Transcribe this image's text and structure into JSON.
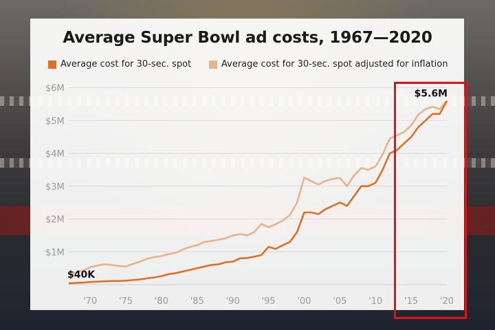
{
  "chart_data": {
    "type": "line",
    "title": "Average Super Bowl ad costs, 1967—2020",
    "xlabel": "",
    "ylabel": "",
    "x": [
      1967,
      1968,
      1969,
      1970,
      1971,
      1972,
      1973,
      1974,
      1975,
      1976,
      1977,
      1978,
      1979,
      1980,
      1981,
      1982,
      1983,
      1984,
      1985,
      1986,
      1987,
      1988,
      1989,
      1990,
      1991,
      1992,
      1993,
      1994,
      1995,
      1996,
      1997,
      1998,
      1999,
      2000,
      2001,
      2002,
      2003,
      2004,
      2005,
      2006,
      2007,
      2008,
      2009,
      2010,
      2011,
      2012,
      2013,
      2014,
      2015,
      2016,
      2017,
      2018,
      2019,
      2020
    ],
    "series": [
      {
        "name": "Average cost for 30-sec. spot",
        "color": "#e07020",
        "values": [
          0.04,
          0.05,
          0.06,
          0.08,
          0.09,
          0.1,
          0.11,
          0.11,
          0.12,
          0.14,
          0.16,
          0.19,
          0.22,
          0.26,
          0.32,
          0.35,
          0.4,
          0.45,
          0.5,
          0.55,
          0.6,
          0.62,
          0.68,
          0.7,
          0.8,
          0.81,
          0.85,
          0.9,
          1.15,
          1.09,
          1.2,
          1.3,
          1.6,
          2.2,
          2.2,
          2.15,
          2.3,
          2.4,
          2.5,
          2.4,
          2.7,
          3.0,
          3.0,
          3.1,
          3.5,
          4.0,
          4.1,
          4.3,
          4.5,
          4.8,
          5.0,
          5.2,
          5.2,
          5.6
        ]
      },
      {
        "name": "Average cost for 30-sec. spot adjusted for inflation",
        "color": "#e8b38a",
        "values": [
          0.31,
          0.37,
          0.43,
          0.53,
          0.58,
          0.62,
          0.6,
          0.57,
          0.55,
          0.63,
          0.7,
          0.79,
          0.84,
          0.87,
          0.93,
          0.97,
          1.07,
          1.15,
          1.2,
          1.3,
          1.33,
          1.37,
          1.41,
          1.5,
          1.54,
          1.5,
          1.6,
          1.85,
          1.75,
          1.84,
          1.95,
          2.12,
          2.5,
          3.26,
          3.15,
          3.05,
          3.16,
          3.22,
          3.25,
          3.0,
          3.33,
          3.55,
          3.5,
          3.6,
          3.97,
          4.45,
          4.55,
          4.65,
          4.85,
          5.18,
          5.35,
          5.42,
          5.35,
          5.6
        ]
      }
    ],
    "ylim": [
      0,
      6.2
    ],
    "yticks": [
      {
        "value": 1,
        "label": "$1M"
      },
      {
        "value": 2,
        "label": "$2M"
      },
      {
        "value": 3,
        "label": "$3M"
      },
      {
        "value": 4,
        "label": "$4M"
      },
      {
        "value": 5,
        "label": "$5M"
      },
      {
        "value": 6,
        "label": "$6M"
      }
    ],
    "xticks": [
      {
        "value": 1970,
        "label": "'70"
      },
      {
        "value": 1975,
        "label": "'75"
      },
      {
        "value": 1980,
        "label": "'80"
      },
      {
        "value": 1985,
        "label": "'85"
      },
      {
        "value": 1990,
        "label": "'90"
      },
      {
        "value": 1995,
        "label": "'95"
      },
      {
        "value": 2000,
        "label": "'00"
      },
      {
        "value": 2005,
        "label": "'05"
      },
      {
        "value": 2010,
        "label": "'10"
      },
      {
        "value": 2015,
        "label": "'15"
      },
      {
        "value": 2020,
        "label": "'20"
      }
    ],
    "annotations": [
      {
        "x": 1967,
        "y": 0.04,
        "label": "$40K"
      },
      {
        "x": 2020,
        "y": 5.6,
        "label": "$5.6M"
      }
    ],
    "grid": true,
    "legend_position": "top-left",
    "highlight_range": [
      2014,
      2020
    ],
    "highlight_color": "#e01313"
  }
}
